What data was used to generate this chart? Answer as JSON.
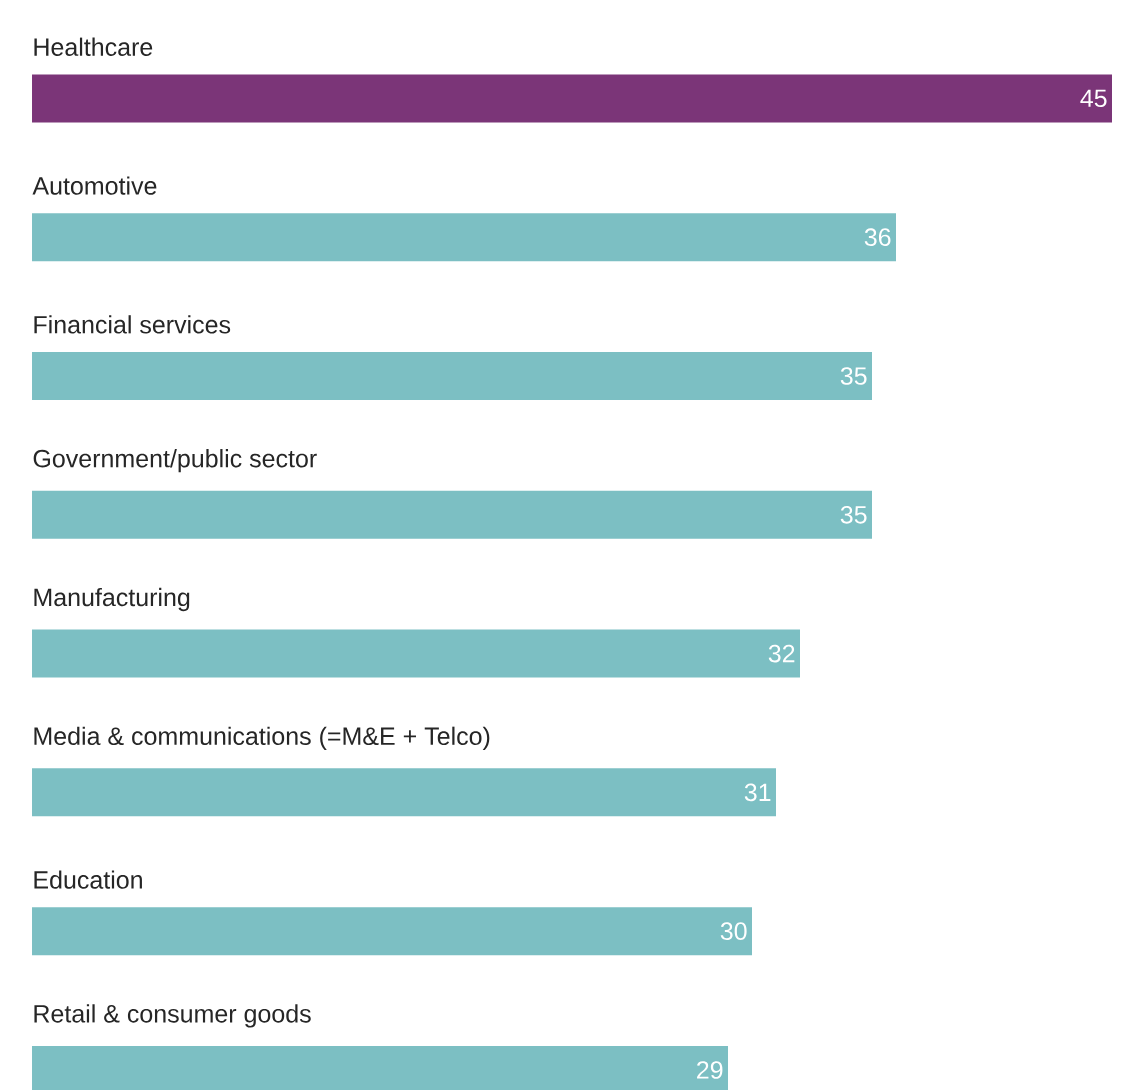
{
  "chart_data": {
    "type": "bar",
    "orientation": "horizontal",
    "categories": [
      "Healthcare",
      "Automotive",
      "Financial services",
      "Government/public sector",
      "Manufacturing",
      "Media & communications (=M&E + Telco)",
      "Education",
      "Retail & consumer goods"
    ],
    "values": [
      45,
      36,
      35,
      35,
      32,
      31,
      30,
      29
    ],
    "colors": [
      "#7b3578",
      "#7cbfc3",
      "#7cbfc3",
      "#7cbfc3",
      "#7cbfc3",
      "#7cbfc3",
      "#7cbfc3",
      "#7cbfc3"
    ],
    "data_labels": true
  }
}
